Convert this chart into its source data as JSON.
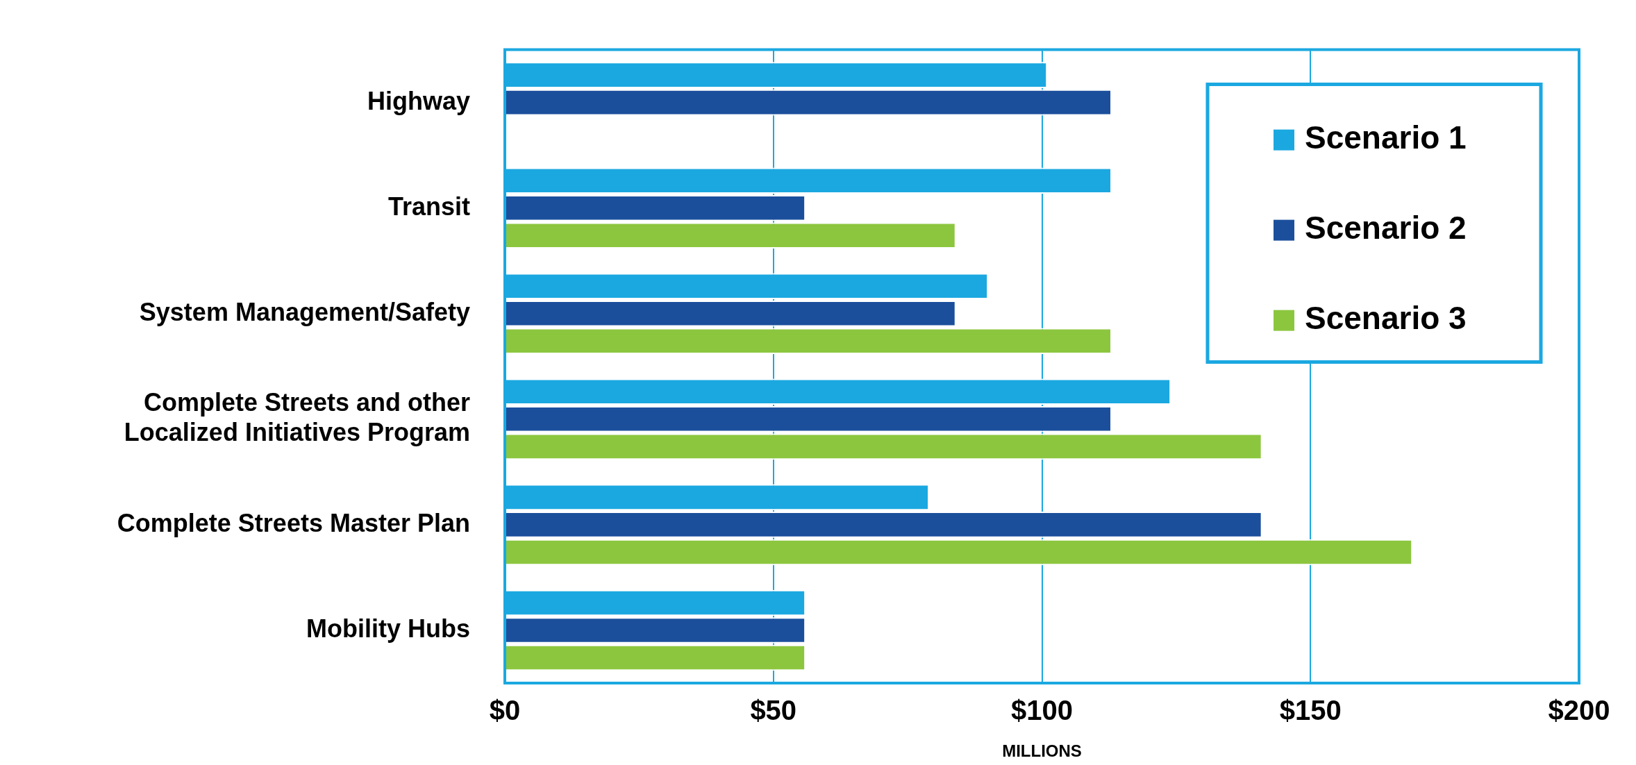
{
  "chart_data": {
    "type": "bar",
    "orientation": "horizontal",
    "xlabel": "MILLIONS",
    "categories": [
      "Highway",
      "Transit",
      "System Management/Safety",
      "Complete Streets and other\nLocalized Initiatives Program",
      "Complete Streets Master Plan",
      "Mobility Hubs"
    ],
    "series": [
      {
        "name": "Scenario 1",
        "color": "#1ba8e0",
        "values": [
          101,
          113,
          90,
          124,
          79,
          56
        ]
      },
      {
        "name": "Scenario 2",
        "color": "#1b4f9c",
        "values": [
          113,
          56,
          84,
          113,
          141,
          56
        ]
      },
      {
        "name": "Scenario 3",
        "color": "#8cc63f",
        "values": [
          null,
          84,
          113,
          141,
          169,
          56
        ]
      }
    ],
    "xlim": [
      0,
      200
    ],
    "xticks": [
      {
        "value": 0,
        "label": "$0"
      },
      {
        "value": 50,
        "label": "$50"
      },
      {
        "value": 100,
        "label": "$100"
      },
      {
        "value": 150,
        "label": "$150"
      },
      {
        "value": 200,
        "label": "$200"
      }
    ],
    "grid": "x",
    "legend": "top right"
  }
}
